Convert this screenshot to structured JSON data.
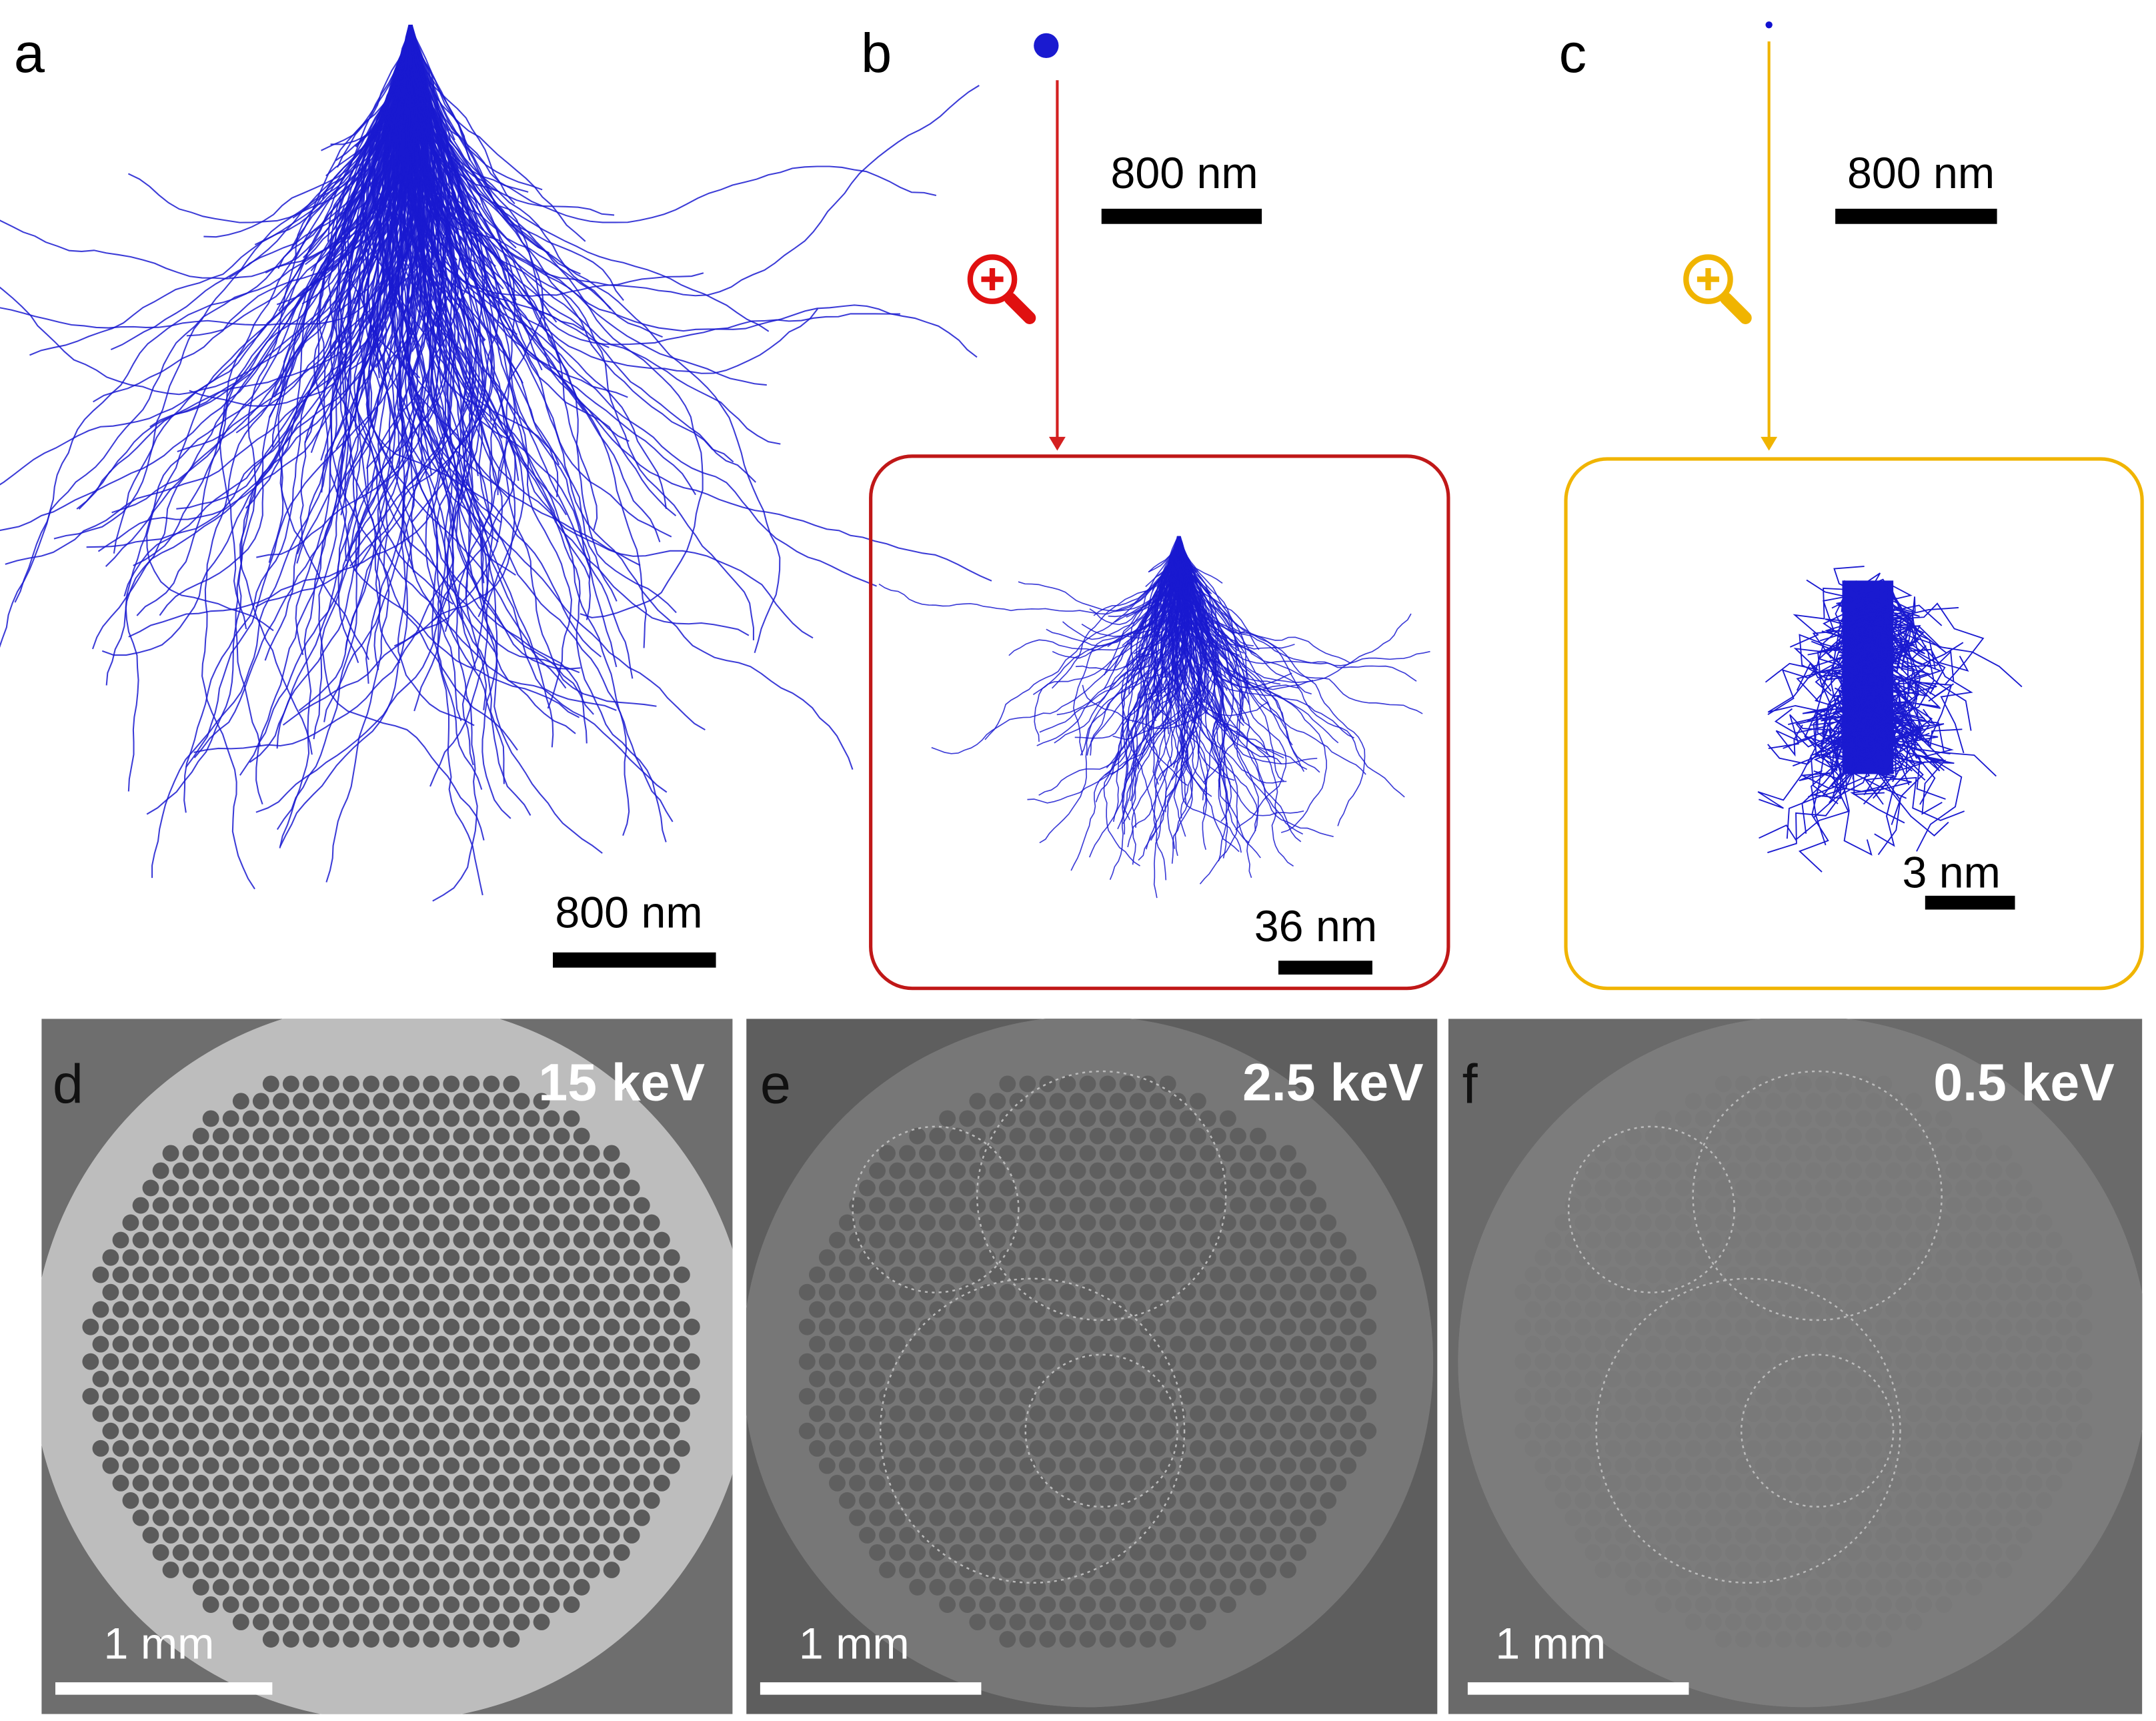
{
  "panels": [
    {
      "label": "a",
      "scale_bar": "800 nm"
    },
    {
      "label": "b",
      "scale_bar": "800 nm",
      "inset_scale_bar": "36 nm"
    },
    {
      "label": "c",
      "scale_bar": "800 nm",
      "inset_scale_bar": "3 nm"
    },
    {
      "label": "d",
      "energy": "15 keV",
      "scale_bar": "1 mm"
    },
    {
      "label": "e",
      "energy": "2.5 keV",
      "scale_bar": "1 mm"
    },
    {
      "label": "f",
      "energy": "0.5 keV",
      "scale_bar": "1 mm"
    }
  ]
}
